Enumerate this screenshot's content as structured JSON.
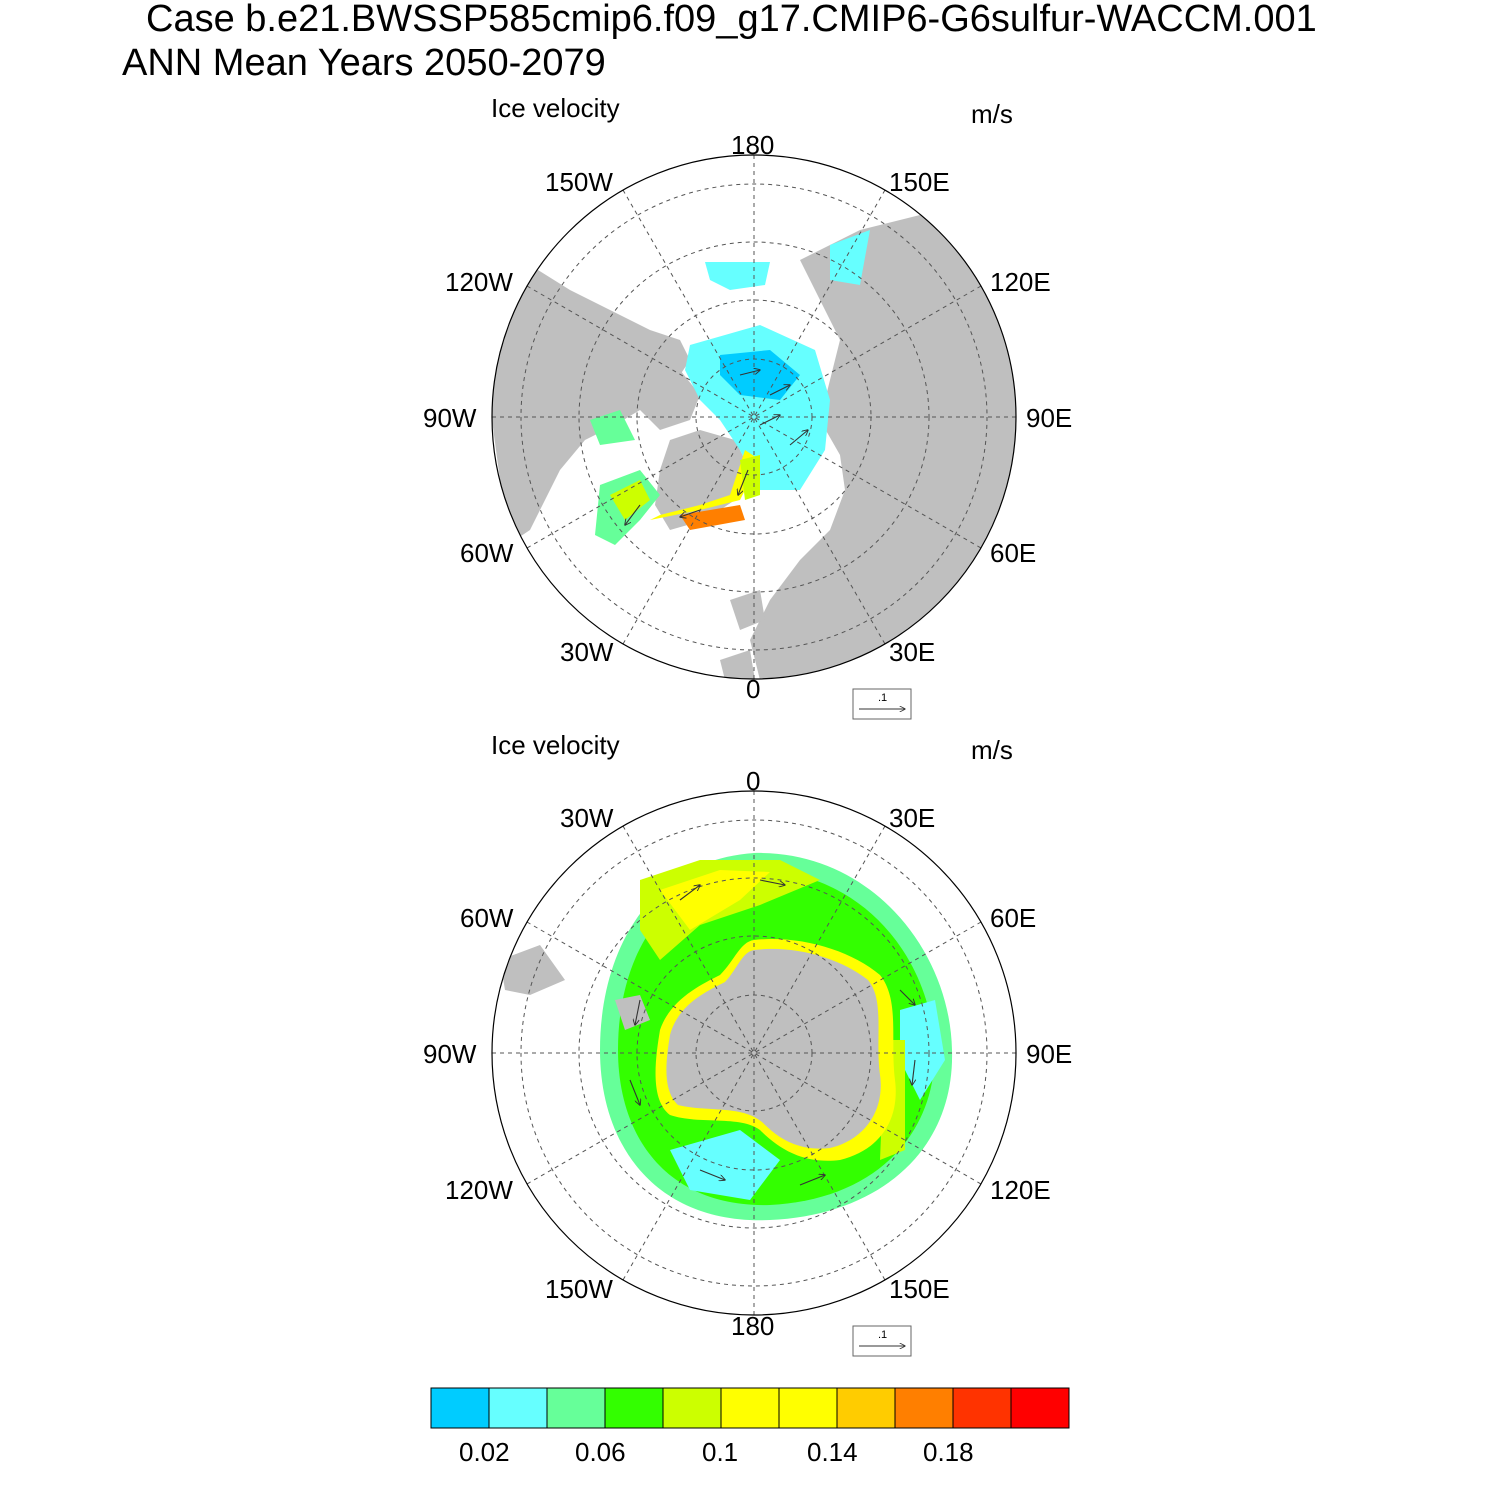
{
  "header": {
    "case_line": "Case b.e21.BWSSP585cmip6.f09_g17.CMIP6-G6sulfur-WACCM.001",
    "period_line": "ANN Mean   Years 2050-2079"
  },
  "panels": [
    {
      "id": "north",
      "hemisphere": "Northern",
      "title": "Ice velocity",
      "units": "m/s",
      "longitude_labels": [
        "180",
        "150E",
        "120E",
        "90E",
        "60E",
        "30E",
        "0",
        "30W",
        "60W",
        "90W",
        "120W",
        "150W"
      ],
      "reference_vector_label": ".1"
    },
    {
      "id": "south",
      "hemisphere": "Southern",
      "title": "Ice velocity",
      "units": "m/s",
      "longitude_labels": [
        "0",
        "30E",
        "60E",
        "90E",
        "120E",
        "150E",
        "180",
        "150W",
        "120W",
        "90W",
        "60W",
        "30W"
      ],
      "reference_vector_label": ".1"
    }
  ],
  "colorbar": {
    "colors": [
      "#00ccff",
      "#66ffff",
      "#66ff99",
      "#33ff00",
      "#ccff00",
      "#ffff00",
      "#ffff00",
      "#ffcc00",
      "#ff7f00",
      "#ff3300",
      "#ff0000"
    ],
    "tick_labels": [
      "0.02",
      "0.06",
      "0.1",
      "0.14",
      "0.18"
    ]
  },
  "colors": {
    "land": "#bfbfbf",
    "ocean": "#ffffff",
    "grid": "#555555"
  }
}
